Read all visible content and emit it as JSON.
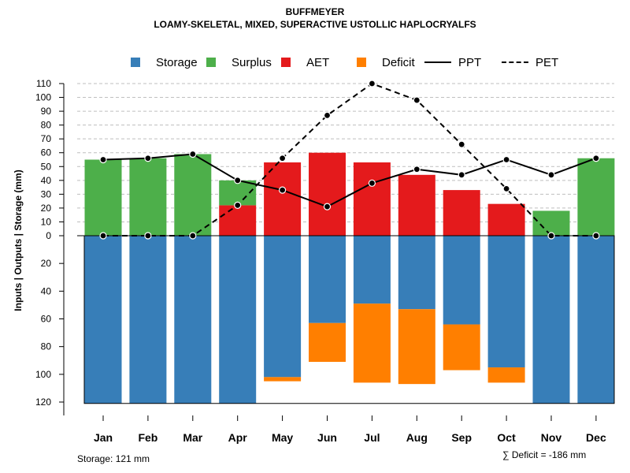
{
  "header": {
    "title": "BUFFMEYER",
    "subtitle": "LOAMY-SKELETAL, MIXED, SUPERACTIVE USTOLLIC HAPLOCRYALFS"
  },
  "legend": {
    "storage": "Storage",
    "surplus": "Surplus",
    "aet": "AET",
    "deficit": "Deficit",
    "ppt": "PPT",
    "pet": "PET"
  },
  "colors": {
    "storage": "#377EB8",
    "surplus": "#4DAF4A",
    "aet": "#E41A1C",
    "deficit": "#FF7F00",
    "grid": "#bfbfbf"
  },
  "footer": {
    "storage_note": "Storage: 121 mm",
    "deficit_note": "∑ Deficit = -186 mm"
  },
  "chart_data": {
    "type": "bar",
    "title": "BUFFMEYER",
    "subtitle": "LOAMY-SKELETAL, MIXED, SUPERACTIVE USTOLLIC HAPLOCRYALFS",
    "ylabel": "Inputs | Outputs | Storage     (mm)",
    "xlabel": "",
    "categories": [
      "Jan",
      "Feb",
      "Mar",
      "Apr",
      "May",
      "Jun",
      "Jul",
      "Aug",
      "Sep",
      "Oct",
      "Nov",
      "Dec"
    ],
    "y_ticks_upper": [
      0,
      10,
      20,
      30,
      40,
      50,
      60,
      70,
      80,
      90,
      100,
      110
    ],
    "y_ticks_lower": [
      20,
      40,
      60,
      80,
      100,
      120
    ],
    "ylim_upper": [
      0,
      110
    ],
    "ylim_lower": [
      0,
      121
    ],
    "series": [
      {
        "name": "Surplus",
        "values": [
          55,
          56,
          59,
          18,
          0,
          0,
          0,
          0,
          0,
          0,
          18,
          56
        ]
      },
      {
        "name": "AET",
        "values": [
          0,
          0,
          0,
          22,
          53,
          60,
          53,
          44,
          33,
          23,
          0,
          0
        ]
      },
      {
        "name": "Storage",
        "values": [
          121,
          121,
          121,
          121,
          102,
          63,
          49,
          53,
          64,
          95,
          121,
          121
        ]
      },
      {
        "name": "Deficit",
        "values": [
          0,
          0,
          0,
          0,
          3,
          28,
          57,
          54,
          33,
          11,
          0,
          0
        ]
      },
      {
        "name": "PPT",
        "values": [
          55,
          56,
          59,
          40,
          33,
          21,
          38,
          48,
          44,
          55,
          44,
          56
        ]
      },
      {
        "name": "PET",
        "values": [
          0,
          0,
          0,
          22,
          56,
          87,
          110,
          98,
          66,
          34,
          0,
          0
        ]
      }
    ],
    "grid": true,
    "legend_position": "top"
  }
}
